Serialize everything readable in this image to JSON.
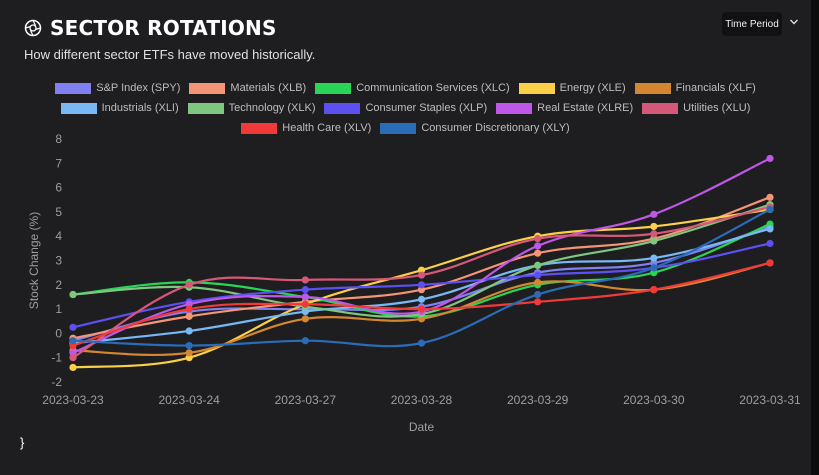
{
  "header": {
    "title": "SECTOR ROTATIONS",
    "subtitle": "How different sector ETFs have moved historically.",
    "time_period_label": "Time Period"
  },
  "footer": {
    "brace": "}"
  },
  "chart_data": {
    "type": "line",
    "title": "",
    "xlabel": "Date",
    "ylabel": "Stock Change (%)",
    "ylim": [
      -2,
      8
    ],
    "yticks": [
      -2,
      -1,
      0,
      1,
      2,
      3,
      4,
      5,
      6,
      7,
      8
    ],
    "legend_position": "top",
    "grid": false,
    "categories": [
      "2023-03-23",
      "2023-03-24",
      "2023-03-27",
      "2023-03-28",
      "2023-03-29",
      "2023-03-30",
      "2023-03-31"
    ],
    "series": [
      {
        "name": "S&P Index (SPY)",
        "color": "#8080f0",
        "values": [
          -0.3,
          0.9,
          1.0,
          1.1,
          2.5,
          2.9,
          4.4
        ]
      },
      {
        "name": "Materials (XLB)",
        "color": "#f59577",
        "values": [
          -0.2,
          0.7,
          1.3,
          1.8,
          3.3,
          3.9,
          5.6
        ]
      },
      {
        "name": "Communication Services (XLC)",
        "color": "#2ad457",
        "values": [
          1.6,
          2.1,
          1.5,
          0.7,
          2.0,
          2.5,
          4.5
        ]
      },
      {
        "name": "Energy (XLE)",
        "color": "#fbd048",
        "values": [
          -1.4,
          -1.0,
          1.2,
          2.6,
          4.0,
          4.4,
          5.1
        ]
      },
      {
        "name": "Financials (XLF)",
        "color": "#d48630",
        "values": [
          -0.7,
          -0.8,
          0.6,
          0.6,
          2.1,
          1.8,
          2.9
        ]
      },
      {
        "name": "Industrials (XLI)",
        "color": "#78b8f5",
        "values": [
          -0.4,
          0.1,
          0.9,
          1.4,
          2.8,
          3.1,
          4.3
        ]
      },
      {
        "name": "Technology (XLK)",
        "color": "#7fc67f",
        "values": [
          1.6,
          1.9,
          1.1,
          0.8,
          2.8,
          3.8,
          5.3
        ]
      },
      {
        "name": "Consumer Staples (XLP)",
        "color": "#5c50f0",
        "values": [
          0.25,
          1.3,
          1.8,
          2.0,
          2.4,
          2.7,
          3.7
        ]
      },
      {
        "name": "Real Estate (XLRE)",
        "color": "#bf58e8",
        "values": [
          -0.8,
          1.2,
          1.5,
          0.9,
          3.6,
          4.9,
          7.2
        ]
      },
      {
        "name": "Utilities (XLU)",
        "color": "#d65878",
        "values": [
          -1.0,
          2.0,
          2.2,
          2.4,
          3.9,
          4.1,
          5.2
        ]
      },
      {
        "name": "Health Care (XLV)",
        "color": "#f03a3a",
        "values": [
          -0.5,
          1.0,
          1.2,
          1.0,
          1.3,
          1.8,
          2.9
        ]
      },
      {
        "name": "Consumer Discretionary (XLY)",
        "color": "#2b6cb8",
        "values": [
          -0.3,
          -0.5,
          -0.3,
          -0.4,
          1.6,
          2.7,
          5.1
        ]
      }
    ],
    "legend_rows": [
      [
        0,
        1,
        2,
        3,
        4
      ],
      [
        5,
        6,
        7,
        8,
        9
      ],
      [
        10,
        11
      ]
    ]
  }
}
